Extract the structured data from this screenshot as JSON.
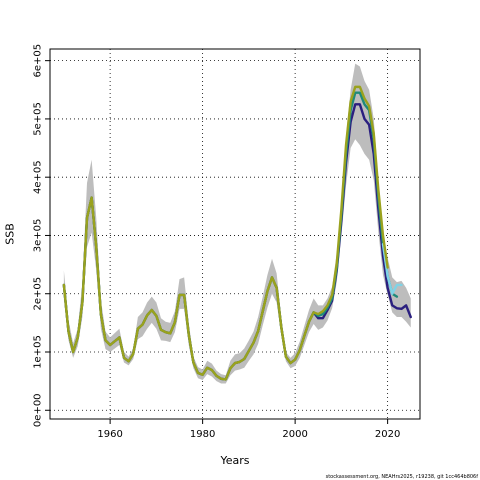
{
  "chart_data": {
    "type": "line",
    "xlabel": "Years",
    "ylabel": "SSB",
    "caption": "stockassessment.org, NEAHrs2025, r19238, git 1cc464b806f",
    "xlim": [
      1947,
      2027
    ],
    "ylim": [
      -15000,
      620000
    ],
    "x_ticks": [
      {
        "value": 1960,
        "label": "1960"
      },
      {
        "value": 1980,
        "label": "1980"
      },
      {
        "value": 2000,
        "label": "2000"
      },
      {
        "value": 2020,
        "label": "2020"
      }
    ],
    "y_ticks": [
      {
        "value": 0,
        "label": "0e+00"
      },
      {
        "value": 100000,
        "label": "1e+05"
      },
      {
        "value": 200000,
        "label": "2e+05"
      },
      {
        "value": 300000,
        "label": "3e+05"
      },
      {
        "value": 400000,
        "label": "4e+05"
      },
      {
        "value": 500000,
        "label": "5e+05"
      },
      {
        "value": 600000,
        "label": "6e+05"
      }
    ],
    "grid": true,
    "band": {
      "color": "#bdbdbd",
      "x": [
        1950,
        1951,
        1952,
        1953,
        1954,
        1955,
        1956,
        1957,
        1958,
        1959,
        1960,
        1962,
        1963,
        1964,
        1965,
        1966,
        1967,
        1968,
        1969,
        1970,
        1971,
        1972,
        1973,
        1974,
        1975,
        1976,
        1977,
        1978,
        1979,
        1980,
        1981,
        1982,
        1983,
        1984,
        1985,
        1986,
        1987,
        1988,
        1989,
        1990,
        1991,
        1992,
        1993,
        1994,
        1995,
        1996,
        1997,
        1998,
        1999,
        2000,
        2001,
        2002,
        2003,
        2004,
        2005,
        2006,
        2007,
        2008,
        2009,
        2010,
        2011,
        2012,
        2013,
        2014,
        2015,
        2016,
        2017,
        2018,
        2019,
        2020,
        2021,
        2022,
        2023,
        2024,
        2025
      ],
      "lower": [
        190000,
        120000,
        90000,
        110000,
        160000,
        280000,
        305000,
        240000,
        140000,
        105000,
        100000,
        112000,
        82000,
        77000,
        88000,
        122000,
        127000,
        140000,
        150000,
        140000,
        120000,
        119000,
        117000,
        134000,
        174000,
        174000,
        112000,
        72000,
        55000,
        52000,
        62000,
        58000,
        50000,
        46000,
        46000,
        60000,
        68000,
        70000,
        73000,
        85000,
        96000,
        114000,
        146000,
        176000,
        200000,
        185000,
        128000,
        84000,
        72000,
        76000,
        90000,
        112000,
        134000,
        148000,
        138000,
        142000,
        154000,
        175000,
        220000,
        300000,
        385000,
        450000,
        465000,
        455000,
        440000,
        430000,
        395000,
        305000,
        232000,
        198000,
        168000,
        160000,
        160000,
        152000,
        142000
      ],
      "upper": [
        240000,
        155000,
        115000,
        140000,
        220000,
        390000,
        430000,
        330000,
        190000,
        135000,
        125000,
        140000,
        100000,
        92000,
        106000,
        160000,
        168000,
        185000,
        195000,
        185000,
        158000,
        152000,
        150000,
        170000,
        225000,
        228000,
        150000,
        92000,
        74000,
        70000,
        85000,
        80000,
        68000,
        62000,
        60000,
        85000,
        96000,
        98000,
        106000,
        120000,
        135000,
        160000,
        195000,
        232000,
        260000,
        235000,
        160000,
        100000,
        90000,
        98000,
        118000,
        145000,
        172000,
        192000,
        180000,
        180000,
        192000,
        212000,
        270000,
        360000,
        470000,
        550000,
        595000,
        590000,
        565000,
        550000,
        500000,
        395000,
        305000,
        262000,
        228000,
        220000,
        222000,
        210000,
        192000
      ]
    },
    "series": [
      {
        "color": "#2a1f7f",
        "x": [
          1950,
          1951,
          1952,
          1953,
          1954,
          1955,
          1956,
          1957,
          1958,
          1959,
          1960,
          1962,
          1963,
          1964,
          1965,
          1966,
          1967,
          1968,
          1969,
          1970,
          1971,
          1972,
          1973,
          1974,
          1975,
          1976,
          1977,
          1978,
          1979,
          1980,
          1981,
          1982,
          1983,
          1984,
          1985,
          1986,
          1987,
          1988,
          1989,
          1990,
          1991,
          1992,
          1993,
          1994,
          1995,
          1996,
          1997,
          1998,
          1999,
          2000,
          2001,
          2002,
          2003,
          2004,
          2005,
          2006,
          2007,
          2008,
          2009,
          2010,
          2011,
          2012,
          2013,
          2014,
          2015,
          2016,
          2017,
          2018,
          2019,
          2020,
          2021,
          2022,
          2023,
          2024,
          2025
        ],
        "values": [
          215000,
          135000,
          100000,
          125000,
          185000,
          330000,
          365000,
          280000,
          165000,
          120000,
          112000,
          125000,
          90000,
          84000,
          97000,
          140000,
          147000,
          163000,
          172000,
          162000,
          138000,
          134000,
          132000,
          151000,
          198000,
          198000,
          130000,
          82000,
          64000,
          61000,
          73000,
          69000,
          59000,
          54000,
          53000,
          72000,
          81000,
          83000,
          88000,
          102000,
          116000,
          136000,
          170000,
          204000,
          228000,
          210000,
          143000,
          92000,
          81000,
          87000,
          103000,
          128000,
          152000,
          168000,
          158000,
          158000,
          172000,
          188000,
          240000,
          325000,
          425000,
          495000,
          525000,
          525000,
          500000,
          490000,
          440000,
          345000,
          265000,
          210000,
          180000,
          175000,
          174000,
          180000,
          160000
        ]
      },
      {
        "color": "#1f8a7a",
        "x": [
          1950,
          1951,
          1952,
          1953,
          1954,
          1955,
          1956,
          1957,
          1958,
          1959,
          1960,
          1962,
          1963,
          1964,
          1965,
          1966,
          1967,
          1968,
          1969,
          1970,
          1971,
          1972,
          1973,
          1974,
          1975,
          1976,
          1977,
          1978,
          1979,
          1980,
          1981,
          1982,
          1983,
          1984,
          1985,
          1986,
          1987,
          1988,
          1989,
          1990,
          1991,
          1992,
          1993,
          1994,
          1995,
          1996,
          1997,
          1998,
          1999,
          2000,
          2001,
          2002,
          2003,
          2004,
          2005,
          2006,
          2007,
          2008,
          2009,
          2010,
          2011,
          2012,
          2013,
          2014,
          2015,
          2016,
          2017,
          2018,
          2019,
          2020,
          2021,
          2022
        ],
        "values": [
          215000,
          135000,
          100000,
          125000,
          185000,
          330000,
          365000,
          280000,
          165000,
          120000,
          112000,
          125000,
          90000,
          84000,
          97000,
          140000,
          147000,
          163000,
          172000,
          162000,
          138000,
          134000,
          132000,
          151000,
          198000,
          198000,
          130000,
          82000,
          64000,
          61000,
          73000,
          69000,
          59000,
          54000,
          53000,
          72000,
          81000,
          83000,
          88000,
          102000,
          116000,
          136000,
          170000,
          204000,
          228000,
          210000,
          143000,
          92000,
          81000,
          87000,
          103000,
          128000,
          152000,
          168000,
          162000,
          165000,
          176000,
          192000,
          245000,
          335000,
          440000,
          515000,
          545000,
          545000,
          525000,
          515000,
          465000,
          365000,
          285000,
          230000,
          200000,
          195000
        ]
      },
      {
        "color": "#7fd3e6",
        "x": [
          2019,
          2020,
          2021,
          2022,
          2023
        ],
        "values": [
          285000,
          230000,
          200000,
          215000,
          215000
        ]
      },
      {
        "color": "#9aa21e",
        "x": [
          1950,
          1951,
          1952,
          1953,
          1954,
          1955,
          1956,
          1957,
          1958,
          1959,
          1960,
          1962,
          1963,
          1964,
          1965,
          1966,
          1967,
          1968,
          1969,
          1970,
          1971,
          1972,
          1973,
          1974,
          1975,
          1976,
          1977,
          1978,
          1979,
          1980,
          1981,
          1982,
          1983,
          1984,
          1985,
          1986,
          1987,
          1988,
          1989,
          1990,
          1991,
          1992,
          1993,
          1994,
          1995,
          1996,
          1997,
          1998,
          1999,
          2000,
          2001,
          2002,
          2003,
          2004,
          2005,
          2006,
          2007,
          2008,
          2009,
          2010,
          2011,
          2012,
          2013,
          2014,
          2015,
          2016,
          2017,
          2018,
          2019,
          2020
        ],
        "values": [
          215000,
          135000,
          100000,
          125000,
          185000,
          330000,
          365000,
          280000,
          165000,
          120000,
          112000,
          125000,
          90000,
          84000,
          97000,
          140000,
          147000,
          163000,
          172000,
          162000,
          138000,
          134000,
          132000,
          151000,
          198000,
          198000,
          130000,
          82000,
          64000,
          61000,
          73000,
          69000,
          59000,
          54000,
          53000,
          72000,
          81000,
          83000,
          88000,
          102000,
          116000,
          136000,
          170000,
          204000,
          228000,
          210000,
          143000,
          92000,
          81000,
          87000,
          103000,
          128000,
          152000,
          168000,
          165000,
          170000,
          180000,
          198000,
          252000,
          345000,
          455000,
          530000,
          555000,
          555000,
          535000,
          522000,
          475000,
          378000,
          300000,
          245000
        ]
      }
    ]
  }
}
